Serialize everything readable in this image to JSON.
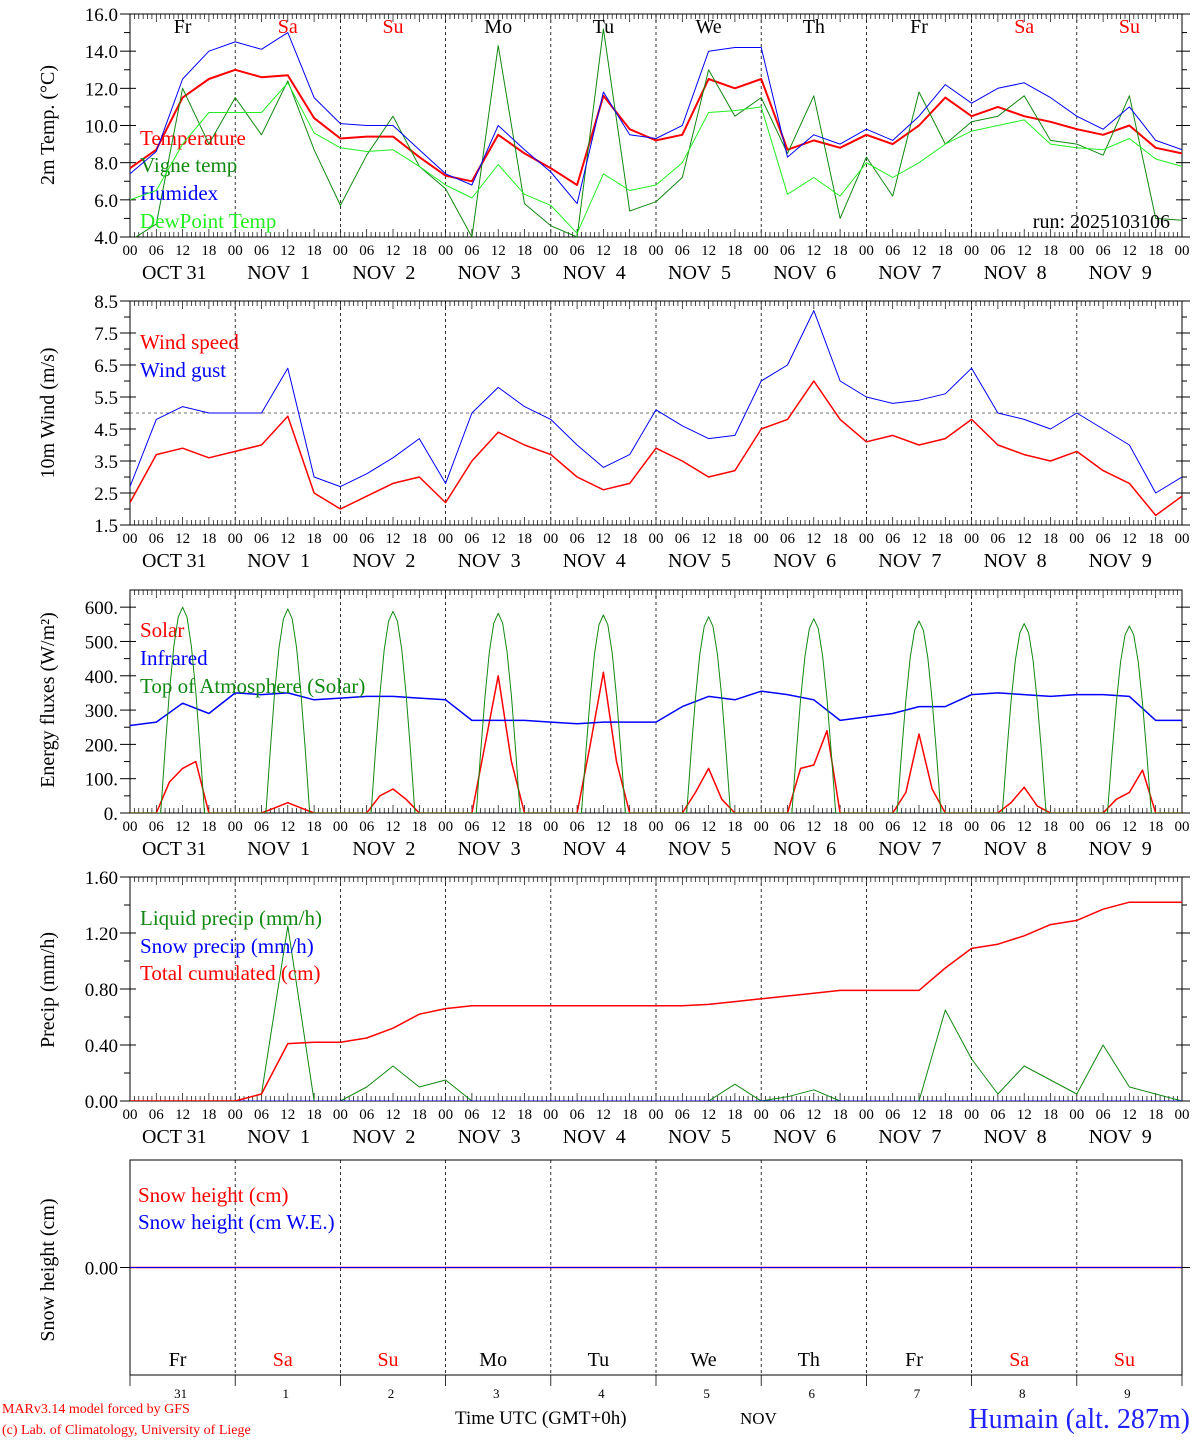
{
  "run_label": "run: 2025103106",
  "station_label": "Humain (alt. 287m)",
  "credit_line1": "MARv3.14 model forced by GFS",
  "credit_line2": "(c) Lab. of Climatology, University of Liege",
  "time_axis_label": "Time UTC (GMT+0h)",
  "month_label": "NOV",
  "colors": {
    "weekday": "#000000",
    "weekend": "#ff0000",
    "station": "#2222ff",
    "credit": "#ff0000"
  },
  "days": [
    {
      "name": "Fr",
      "weekend": false,
      "date": "31",
      "date_label": "OCT 31"
    },
    {
      "name": "Sa",
      "weekend": true,
      "date": "1",
      "date_label": "NOV  1"
    },
    {
      "name": "Su",
      "weekend": true,
      "date": "2",
      "date_label": "NOV  2"
    },
    {
      "name": "Mo",
      "weekend": false,
      "date": "3",
      "date_label": "NOV  3"
    },
    {
      "name": "Tu",
      "weekend": false,
      "date": "4",
      "date_label": "NOV  4"
    },
    {
      "name": "We",
      "weekend": false,
      "date": "5",
      "date_label": "NOV  5"
    },
    {
      "name": "Th",
      "weekend": false,
      "date": "6",
      "date_label": "NOV  6"
    },
    {
      "name": "Fr",
      "weekend": false,
      "date": "7",
      "date_label": "NOV  7"
    },
    {
      "name": "Sa",
      "weekend": true,
      "date": "8",
      "date_label": "NOV  8"
    },
    {
      "name": "Su",
      "weekend": true,
      "date": "9",
      "date_label": "NOV  9"
    }
  ],
  "hour_labels": [
    "00",
    "06",
    "12",
    "18"
  ],
  "chart_data": [
    {
      "type": "line",
      "ylabel": "2m Temp. (°C)",
      "ylim": [
        4,
        16
      ],
      "yticks": [
        4,
        6,
        8,
        10,
        12,
        14,
        16
      ],
      "ytick_labels": [
        "4.0",
        "6.0",
        "8.0",
        "10.0",
        "12.0",
        "14.0",
        "16.0"
      ],
      "series": [
        {
          "name": "Temperature",
          "color": "#ff0000",
          "width": 2,
          "step_hours": 6,
          "values": [
            7.7,
            8.7,
            11.5,
            12.5,
            13.0,
            12.6,
            12.7,
            10.4,
            9.3,
            9.4,
            9.4,
            8.3,
            7.3,
            7.0,
            9.5,
            8.5,
            7.7,
            6.8,
            11.6,
            9.8,
            9.2,
            9.5,
            12.5,
            12.0,
            12.5,
            8.7,
            9.2,
            8.8,
            9.5,
            9.0,
            10.0,
            11.5,
            10.5,
            11.0,
            10.5,
            10.2,
            9.8,
            9.5,
            10.0,
            8.8,
            8.5
          ]
        },
        {
          "name": "Vigne temp",
          "color": "#118811",
          "width": 1,
          "step_hours": 6,
          "values": [
            3.8,
            4.7,
            12.0,
            9.0,
            11.5,
            9.5,
            12.4,
            8.7,
            5.7,
            8.4,
            10.5,
            7.8,
            6.6,
            4.0,
            14.3,
            5.8,
            4.6,
            4.0,
            15.2,
            5.4,
            5.9,
            7.2,
            13.0,
            10.5,
            11.5,
            8.5,
            11.6,
            5.0,
            8.3,
            6.2,
            11.8,
            9.0,
            10.2,
            10.5,
            11.6,
            9.2,
            9.0,
            8.4,
            11.6,
            5.0,
            4.9
          ]
        },
        {
          "name": "Humidex",
          "color": "#0000ff",
          "width": 1,
          "step_hours": 6,
          "values": [
            7.4,
            8.6,
            12.5,
            14.0,
            14.5,
            14.1,
            15.0,
            11.5,
            10.1,
            10.0,
            10.0,
            8.7,
            7.4,
            6.8,
            10.0,
            8.7,
            7.5,
            5.8,
            11.8,
            9.5,
            9.3,
            10.0,
            14.0,
            14.2,
            14.2,
            8.3,
            9.5,
            9.0,
            9.8,
            9.2,
            10.5,
            12.2,
            11.2,
            12.0,
            12.3,
            11.5,
            10.5,
            9.8,
            11.0,
            9.2,
            8.7
          ]
        },
        {
          "name": "DewPoint Temp",
          "color": "#22ee22",
          "width": 1,
          "step_hours": 6,
          "values": [
            6.0,
            6.5,
            9.0,
            10.7,
            10.7,
            10.7,
            12.3,
            9.6,
            8.8,
            8.6,
            8.7,
            7.8,
            6.8,
            6.1,
            7.9,
            6.3,
            5.7,
            4.2,
            7.4,
            6.5,
            6.8,
            8.0,
            10.7,
            10.8,
            11.0,
            6.3,
            7.2,
            6.2,
            8.0,
            7.2,
            8.0,
            9.0,
            9.7,
            10.0,
            10.3,
            9.0,
            8.8,
            8.7,
            9.3,
            8.2,
            7.8
          ]
        }
      ]
    },
    {
      "type": "line",
      "ylabel": "10m Wind (m/s)",
      "ylim": [
        1.5,
        8.5
      ],
      "yticks": [
        1.5,
        2.5,
        3.5,
        4.5,
        5.5,
        6.5,
        7.5,
        8.5
      ],
      "ytick_labels": [
        "1.5",
        "2.5",
        "3.5",
        "4.5",
        "5.5",
        "6.5",
        "7.5",
        "8.5"
      ],
      "reference_line": 5.0,
      "series": [
        {
          "name": "Wind speed",
          "color": "#ff0000",
          "width": 1.5,
          "step_hours": 6,
          "values": [
            2.2,
            3.7,
            3.9,
            3.6,
            3.8,
            4.0,
            4.9,
            2.5,
            2.0,
            2.4,
            2.8,
            3.0,
            2.2,
            3.5,
            4.4,
            4.0,
            3.7,
            3.0,
            2.6,
            2.8,
            3.9,
            3.5,
            3.0,
            3.2,
            4.5,
            4.8,
            6.0,
            4.8,
            4.1,
            4.3,
            4.0,
            4.2,
            4.8,
            4.0,
            3.7,
            3.5,
            3.8,
            3.2,
            2.8,
            1.8,
            2.4
          ]
        },
        {
          "name": "Wind gust",
          "color": "#0000ff",
          "width": 1,
          "step_hours": 6,
          "values": [
            2.7,
            4.8,
            5.2,
            5.0,
            5.0,
            5.0,
            6.4,
            3.0,
            2.7,
            3.1,
            3.6,
            4.2,
            2.8,
            5.0,
            5.8,
            5.2,
            4.8,
            4.0,
            3.3,
            3.7,
            5.1,
            4.6,
            4.2,
            4.3,
            6.0,
            6.5,
            8.2,
            6.0,
            5.5,
            5.3,
            5.4,
            5.6,
            6.4,
            5.0,
            4.8,
            4.5,
            5.0,
            4.5,
            4.0,
            2.5,
            3.0
          ]
        }
      ]
    },
    {
      "type": "line",
      "ylabel": "Energy fluxes (W/m²)",
      "ylim": [
        0,
        650
      ],
      "yticks": [
        0,
        100,
        200,
        300,
        400,
        500,
        600
      ],
      "ytick_labels": [
        "0.",
        "100.",
        "200.",
        "300.",
        "400.",
        "500.",
        "600."
      ],
      "series": [
        {
          "name": "Solar",
          "color": "#ff0000",
          "width": 1.5,
          "step_hours": 3,
          "values": [
            0,
            0,
            0,
            90,
            130,
            150,
            0,
            0,
            0,
            0,
            0,
            15,
            30,
            15,
            0,
            0,
            0,
            0,
            0,
            50,
            70,
            40,
            0,
            0,
            0,
            0,
            0,
            200,
            400,
            150,
            0,
            0,
            0,
            0,
            0,
            200,
            410,
            150,
            0,
            0,
            0,
            0,
            0,
            60,
            130,
            40,
            0,
            0,
            0,
            0,
            0,
            130,
            140,
            240,
            0,
            0,
            0,
            0,
            0,
            60,
            230,
            70,
            0,
            0,
            0,
            0,
            0,
            30,
            75,
            20,
            0,
            0,
            0,
            0,
            0,
            40,
            60,
            125,
            0,
            0,
            0
          ]
        },
        {
          "name": "Infrared",
          "color": "#0000ff",
          "width": 1.5,
          "step_hours": 6,
          "values": [
            255,
            265,
            320,
            290,
            350,
            345,
            350,
            330,
            335,
            340,
            340,
            335,
            330,
            270,
            270,
            270,
            265,
            260,
            265,
            265,
            265,
            310,
            340,
            330,
            355,
            345,
            330,
            270,
            280,
            290,
            310,
            310,
            345,
            350,
            345,
            340,
            345,
            345,
            340,
            270,
            270
          ]
        },
        {
          "name": "Top of Atmosphere (Solar)",
          "color": "#118811",
          "width": 1,
          "daily_peaks": [
            600,
            595,
            588,
            582,
            577,
            572,
            566,
            560,
            552,
            545
          ],
          "sunrise_hour": 7,
          "sunset_hour": 17
        }
      ]
    },
    {
      "type": "line",
      "ylabel": "Precip (mm/h)",
      "ylim": [
        0,
        1.6
      ],
      "yticks": [
        0,
        0.4,
        0.8,
        1.2,
        1.6
      ],
      "ytick_labels": [
        "0.00",
        "0.40",
        "0.80",
        "1.20",
        "1.60"
      ],
      "series": [
        {
          "name": "Liquid precip (mm/h)",
          "color": "#118811",
          "width": 1,
          "step_hours": 6,
          "values": [
            0,
            0,
            0,
            0,
            0,
            0.05,
            1.25,
            0,
            0,
            0.1,
            0.25,
            0.1,
            0.15,
            0,
            0,
            0,
            0,
            0,
            0,
            0,
            0,
            0,
            0,
            0.12,
            0,
            0.03,
            0.08,
            0,
            0,
            0,
            0,
            0.65,
            0.3,
            0.05,
            0.25,
            0.15,
            0.05,
            0.4,
            0.1,
            0.05,
            0
          ]
        },
        {
          "name": "Snow precip (mm/h)",
          "color": "#0000ff",
          "width": 1,
          "step_hours": 240,
          "values": [
            0,
            0
          ]
        },
        {
          "name": "Total cumulated (cm)",
          "color": "#ff0000",
          "width": 1.5,
          "step_hours": 6,
          "values": [
            0,
            0,
            0,
            0,
            0,
            0.05,
            0.41,
            0.42,
            0.42,
            0.45,
            0.52,
            0.62,
            0.66,
            0.68,
            0.68,
            0.68,
            0.68,
            0.68,
            0.68,
            0.68,
            0.68,
            0.68,
            0.69,
            0.71,
            0.73,
            0.75,
            0.77,
            0.79,
            0.79,
            0.79,
            0.79,
            0.95,
            1.09,
            1.12,
            1.18,
            1.26,
            1.29,
            1.37,
            1.42,
            1.42,
            1.42
          ]
        }
      ]
    },
    {
      "type": "line",
      "ylabel": "Snow height (cm)",
      "ylim": [
        -1,
        1
      ],
      "yticks": [
        0
      ],
      "ytick_labels": [
        "0.00"
      ],
      "series": [
        {
          "name": "Snow height (cm)",
          "color": "#ff0000",
          "width": 1.5,
          "step_hours": 240,
          "values": [
            0,
            0
          ]
        },
        {
          "name": "Snow height (cm W.E.)",
          "color": "#0000ff",
          "width": 1,
          "step_hours": 240,
          "values": [
            0,
            0
          ]
        }
      ]
    }
  ]
}
